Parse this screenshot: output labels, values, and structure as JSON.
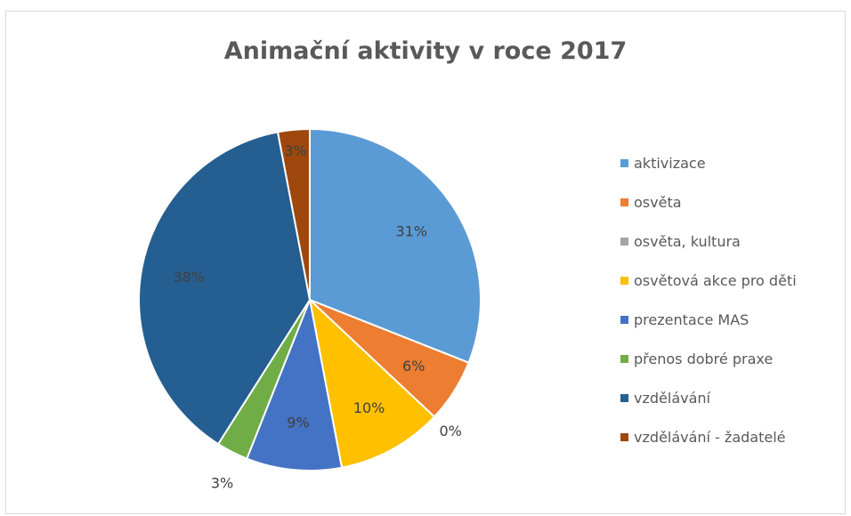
{
  "chart_data": {
    "type": "pie",
    "title": "Animační aktivity v roce 2017",
    "legend_position": "right",
    "slices": [
      {
        "label": "aktivizace",
        "value": 31,
        "value_label": "31%",
        "color": "#5B9BD5"
      },
      {
        "label": "osvěta",
        "value": 6,
        "value_label": "6%",
        "color": "#ED7D31"
      },
      {
        "label": "osvěta, kultura",
        "value": 0,
        "value_label": "0%",
        "color": "#A5A5A5"
      },
      {
        "label": "osvětová akce pro děti",
        "value": 10,
        "value_label": "10%",
        "color": "#FFC000"
      },
      {
        "label": "prezentace MAS",
        "value": 9,
        "value_label": "9%",
        "color": "#4472C4"
      },
      {
        "label": "přenos dobré praxe",
        "value": 3,
        "value_label": "3%",
        "color": "#70AD47"
      },
      {
        "label": "vzdělávání",
        "value": 38,
        "value_label": "38%",
        "color": "#255E91"
      },
      {
        "label": "vzdělávání - žadatelé",
        "value": 3,
        "value_label": "3%",
        "color": "#9E480E"
      }
    ]
  }
}
